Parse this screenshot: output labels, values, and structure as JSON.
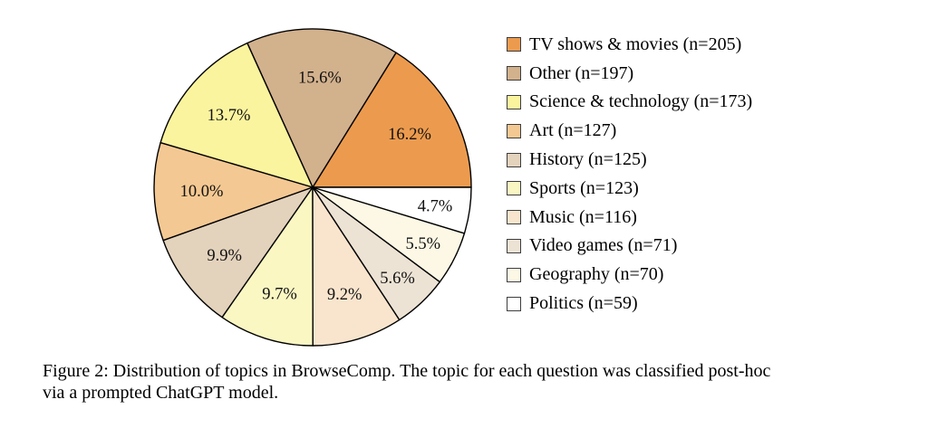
{
  "figure": {
    "caption_line1": "Figure 2: Distribution of topics in BrowseComp. The topic for each question was classified post-hoc",
    "caption_line2": "via a prompted ChatGPT model."
  },
  "chart_data": {
    "type": "pie",
    "title": "",
    "legend_position": "right",
    "direction": "counterclockwise",
    "start_angle_deg": 0,
    "slice_border_color": "#000000",
    "background": "#FFFFFF",
    "slices": [
      {
        "label": "TV shows & movies",
        "n": 205,
        "pct": 16.2,
        "pct_label": "16.2%",
        "legend_label": "TV shows & movies (n=205)",
        "color": "#EC9B4E"
      },
      {
        "label": "Other",
        "n": 197,
        "pct": 15.6,
        "pct_label": "15.6%",
        "legend_label": "Other (n=197)",
        "color": "#D2B18D"
      },
      {
        "label": "Science & technology",
        "n": 173,
        "pct": 13.7,
        "pct_label": "13.7%",
        "legend_label": "Science & technology (n=173)",
        "color": "#FBF49E"
      },
      {
        "label": "Art",
        "n": 127,
        "pct": 10.0,
        "pct_label": "10.0%",
        "legend_label": "Art (n=127)",
        "color": "#F4C892"
      },
      {
        "label": "History",
        "n": 125,
        "pct": 9.9,
        "pct_label": "9.9%",
        "legend_label": "History (n=125)",
        "color": "#E3D2BC"
      },
      {
        "label": "Sports",
        "n": 123,
        "pct": 9.7,
        "pct_label": "9.7%",
        "legend_label": "Sports (n=123)",
        "color": "#FAF7C3"
      },
      {
        "label": "Music",
        "n": 116,
        "pct": 9.2,
        "pct_label": "9.2%",
        "legend_label": "Music (n=116)",
        "color": "#F9E5CD"
      },
      {
        "label": "Video games",
        "n": 71,
        "pct": 5.6,
        "pct_label": "5.6%",
        "legend_label": "Video games (n=71)",
        "color": "#EDE3D4"
      },
      {
        "label": "Geography",
        "n": 70,
        "pct": 5.5,
        "pct_label": "5.5%",
        "legend_label": "Geography (n=70)",
        "color": "#FCF8E5"
      },
      {
        "label": "Politics",
        "n": 59,
        "pct": 4.7,
        "pct_label": "4.7%",
        "legend_label": "Politics (n=59)",
        "color": "#FFFFFF"
      }
    ]
  }
}
